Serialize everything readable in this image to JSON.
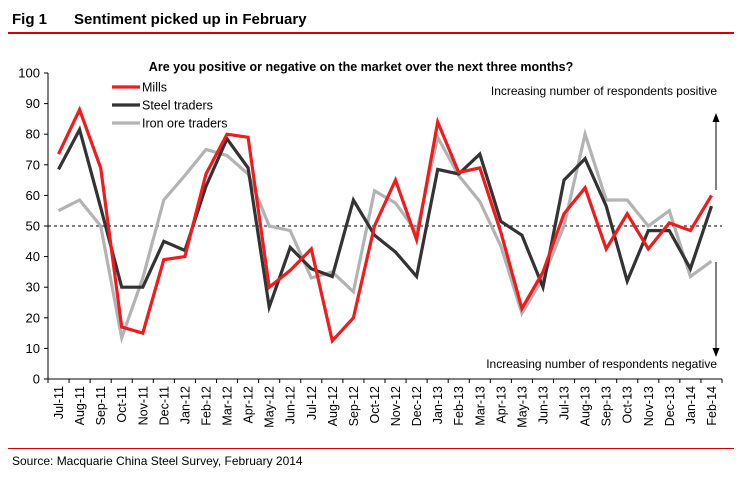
{
  "header": {
    "fig_number": "Fig 1",
    "fig_title": "Sentiment picked up in February"
  },
  "source": "Source: Macquarie China Steel Survey, February 2014",
  "chart_data": {
    "type": "line",
    "title": "Are you positive or negative on the market over the next three months?",
    "xlabel": "",
    "ylabel": "",
    "ylim": [
      0,
      100
    ],
    "yticks": [
      0,
      10,
      20,
      30,
      40,
      50,
      60,
      70,
      80,
      90,
      100
    ],
    "reference_line": 50,
    "annotations": {
      "top": "Increasing number of respondents positive",
      "bottom": "Increasing number of respondents negative"
    },
    "categories": [
      "Jul-11",
      "Aug-11",
      "Sep-11",
      "Oct-11",
      "Nov-11",
      "Dec-11",
      "Jan-12",
      "Feb-12",
      "Mar-12",
      "Apr-12",
      "May-12",
      "Jun-12",
      "Jul-12",
      "Aug-12",
      "Sep-12",
      "Oct-12",
      "Nov-12",
      "Dec-12",
      "Jan-13",
      "Feb-13",
      "Mar-13",
      "Apr-13",
      "May-13",
      "Jun-13",
      "Jul-13",
      "Aug-13",
      "Sep-13",
      "Oct-13",
      "Nov-13",
      "Dec-13",
      "Jan-14",
      "Feb-14"
    ],
    "series": [
      {
        "name": "Iron ore traders",
        "color": "#b3b3b3",
        "values": [
          55,
          58.5,
          50,
          13.5,
          33,
          58.5,
          66.5,
          75,
          73,
          67,
          50,
          48.5,
          33,
          35,
          28.5,
          61.5,
          57.5,
          48,
          79,
          66.5,
          58,
          43.5,
          21.5,
          33,
          50,
          80,
          58.5,
          58.5,
          50,
          55,
          33.5,
          38.5
        ]
      },
      {
        "name": "Steel traders",
        "color": "#333333",
        "values": [
          68.5,
          81.5,
          56,
          30,
          30,
          45,
          42,
          63,
          78.5,
          69,
          23.5,
          43,
          36,
          33.5,
          58.5,
          47,
          41.5,
          33.5,
          68.5,
          67,
          73.5,
          51.5,
          47,
          30,
          65,
          72,
          56.5,
          32,
          48.5,
          48.5,
          36,
          56.5
        ]
      },
      {
        "name": "Mills",
        "color": "#ee1c1c",
        "values": [
          73.5,
          88,
          69,
          17,
          15,
          39,
          40,
          67,
          80,
          79,
          30,
          35.5,
          42.5,
          12.5,
          20,
          50,
          65,
          45.5,
          84,
          67.5,
          69,
          48,
          23,
          35,
          54,
          62.5,
          42.5,
          54,
          42.5,
          51,
          48.5,
          60
        ]
      }
    ]
  }
}
